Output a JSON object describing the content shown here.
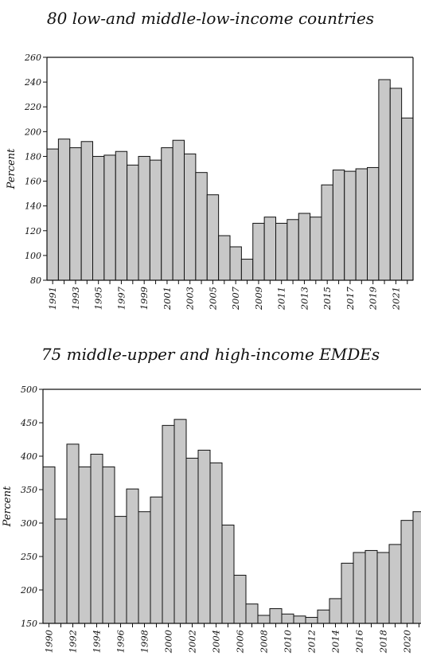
{
  "chart_data": [
    {
      "type": "bar",
      "title": "80 low-and middle-low-income countries",
      "ylabel": "Percent",
      "xlabel": "",
      "ylim": [
        80,
        260
      ],
      "yticks": [
        80,
        100,
        120,
        140,
        160,
        180,
        200,
        220,
        240,
        260
      ],
      "categories": [
        "1991",
        "1992",
        "1993",
        "1994",
        "1995",
        "1996",
        "1997",
        "1998",
        "1999",
        "2000",
        "2001",
        "2002",
        "2003",
        "2004",
        "2005",
        "2006",
        "2007",
        "2008",
        "2009",
        "2010",
        "2011",
        "2012",
        "2013",
        "2014",
        "2015",
        "2016",
        "2017",
        "2018",
        "2019",
        "2020",
        "2021",
        "2022"
      ],
      "xtick_labels": [
        "1991",
        "1993",
        "1995",
        "1997",
        "1999",
        "2001",
        "2003",
        "2005",
        "2007",
        "2009",
        "2011",
        "2013",
        "2015",
        "2017",
        "2019",
        "2021"
      ],
      "values": [
        186,
        194,
        187,
        192,
        180,
        181,
        184,
        173,
        180,
        177,
        187,
        193,
        182,
        167,
        149,
        116,
        107,
        97,
        126,
        131,
        126,
        129,
        134,
        131,
        157,
        169,
        168,
        170,
        171,
        242,
        235,
        211
      ],
      "bar_color": "#c8c8c8",
      "grid": false,
      "legend": "none"
    },
    {
      "type": "bar",
      "title": "75 middle-upper and high-income EMDEs",
      "ylabel": "Percent",
      "xlabel": "",
      "ylim": [
        150,
        500
      ],
      "yticks": [
        150,
        200,
        250,
        300,
        350,
        400,
        450,
        500
      ],
      "categories": [
        "1990",
        "1991",
        "1992",
        "1993",
        "1994",
        "1995",
        "1996",
        "1997",
        "1998",
        "1999",
        "2000",
        "2001",
        "2002",
        "2003",
        "2004",
        "2005",
        "2006",
        "2007",
        "2008",
        "2009",
        "2010",
        "2011",
        "2012",
        "2013",
        "2014",
        "2015",
        "2016",
        "2017",
        "2018",
        "2019",
        "2020",
        "2021"
      ],
      "xtick_labels": [
        "1990",
        "1992",
        "1994",
        "1996",
        "1998",
        "2000",
        "2002",
        "2004",
        "2006",
        "2008",
        "2010",
        "2012",
        "2014",
        "2016",
        "2018",
        "2020"
      ],
      "values": [
        384,
        306,
        418,
        384,
        403,
        384,
        310,
        351,
        317,
        339,
        446,
        455,
        397,
        409,
        390,
        297,
        222,
        179,
        162,
        172,
        164,
        161,
        159,
        170,
        187,
        240,
        256,
        259,
        256,
        268,
        304,
        317
      ],
      "bar_color": "#c8c8c8",
      "grid": false,
      "legend": "none"
    }
  ]
}
